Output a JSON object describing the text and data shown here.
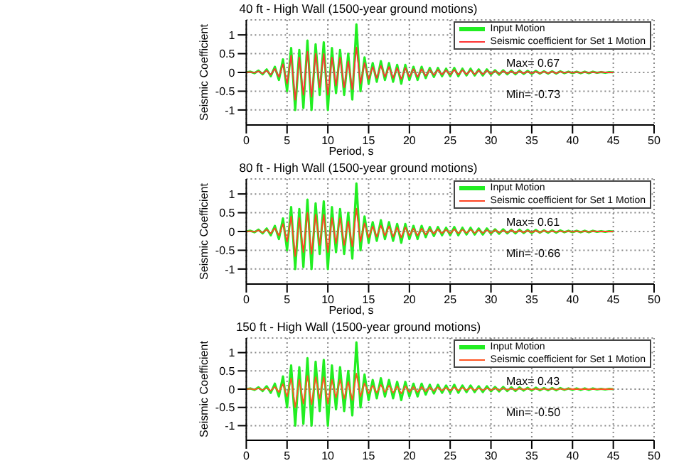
{
  "chart_data": [
    {
      "type": "line",
      "title": "40 ft - High Wall (1500-year ground motions)",
      "xlabel": "Period, s",
      "ylabel": "Seismic Coefficient",
      "x": [
        0,
        0.5,
        1,
        1.5,
        2,
        2.5,
        3,
        3.5,
        4,
        4.5,
        5,
        5.5,
        6,
        6.5,
        7,
        7.5,
        8,
        8.5,
        9,
        9.5,
        10,
        10.5,
        11,
        11.5,
        12,
        12.5,
        13,
        13.5,
        14,
        14.5,
        15,
        15.5,
        16,
        16.5,
        17,
        17.5,
        18,
        18.5,
        19,
        19.5,
        20,
        20.5,
        21,
        21.5,
        22,
        22.5,
        23,
        23.5,
        24,
        24.5,
        25,
        25.5,
        26,
        26.5,
        27,
        27.5,
        28,
        28.5,
        29,
        29.5,
        30,
        30.5,
        31,
        31.5,
        32,
        32.5,
        33,
        33.5,
        34,
        34.5,
        35,
        35.5,
        36,
        36.5,
        37,
        37.5,
        38,
        38.5,
        39,
        39.5,
        40,
        40.5,
        41,
        41.5,
        42,
        42.5,
        43,
        43.5,
        44,
        44.5,
        45
      ],
      "series": [
        {
          "name": "Input Motion",
          "color": "#22ee22",
          "values": [
            0,
            0.02,
            -0.02,
            0.05,
            -0.05,
            0.08,
            -0.1,
            0.15,
            -0.2,
            0.35,
            -0.5,
            0.65,
            -1.0,
            0.6,
            -0.95,
            0.85,
            -1.0,
            0.75,
            -0.6,
            0.8,
            -1.0,
            0.65,
            -0.55,
            0.6,
            -0.6,
            0.5,
            -0.72,
            1.28,
            -0.5,
            0.4,
            -0.3,
            0.25,
            -0.25,
            0.3,
            -0.2,
            0.25,
            -0.25,
            0.2,
            -0.3,
            0.2,
            -0.2,
            0.15,
            -0.2,
            0.15,
            -0.15,
            0.12,
            -0.12,
            0.12,
            -0.1,
            0.1,
            -0.1,
            0.12,
            -0.1,
            0.1,
            -0.08,
            0.1,
            -0.08,
            0.08,
            -0.08,
            0.08,
            -0.06,
            0.06,
            -0.06,
            0.06,
            -0.05,
            0.05,
            -0.05,
            0.05,
            -0.04,
            0.04,
            -0.04,
            0.04,
            -0.03,
            0.03,
            -0.03,
            0.03,
            -0.03,
            0.03,
            -0.02,
            0.02,
            -0.02,
            0.02,
            -0.02,
            0.02,
            -0.02,
            0.02,
            -0.01,
            0.01,
            -0.01,
            0.01,
            0
          ]
        },
        {
          "name": "Seismic coefficient for Set 1 Motion",
          "color": "#ff3333",
          "values": [
            0,
            0.01,
            -0.01,
            0.03,
            -0.03,
            0.05,
            -0.06,
            0.1,
            -0.12,
            0.22,
            -0.3,
            0.45,
            -0.73,
            0.4,
            -0.6,
            0.55,
            -0.65,
            0.5,
            -0.4,
            0.5,
            -0.6,
            0.4,
            -0.35,
            0.4,
            -0.4,
            0.3,
            -0.45,
            0.67,
            -0.3,
            0.25,
            -0.18,
            0.15,
            -0.15,
            0.18,
            -0.12,
            0.15,
            -0.15,
            0.12,
            -0.18,
            0.12,
            -0.12,
            0.09,
            -0.12,
            0.09,
            -0.09,
            0.07,
            -0.07,
            0.07,
            -0.06,
            0.06,
            -0.06,
            0.07,
            -0.06,
            0.06,
            -0.05,
            0.06,
            -0.05,
            0.05,
            -0.05,
            0.05,
            -0.04,
            0.04,
            -0.04,
            0.04,
            -0.03,
            0.03,
            -0.03,
            0.03,
            -0.02,
            0.02,
            -0.02,
            0.02,
            -0.02,
            0.02,
            -0.02,
            0.02,
            -0.02,
            0.02,
            -0.01,
            0.01,
            -0.01,
            0.01,
            -0.01,
            0.01,
            -0.01,
            0.01,
            -0.01,
            0.01,
            0,
            0,
            0
          ]
        }
      ],
      "xlim": [
        0,
        50
      ],
      "xticks": [
        0,
        5,
        10,
        15,
        20,
        25,
        30,
        35,
        40,
        45,
        50
      ],
      "ylim": [
        -1.4,
        1.4
      ],
      "yticks": [
        -1,
        -0.5,
        0,
        0.5,
        1
      ],
      "grid": true,
      "legend": "top right",
      "annotations": [
        "Max= 0.67",
        "Min= -0.73"
      ]
    },
    {
      "type": "line",
      "title": "80 ft - High Wall (1500-year ground motions)",
      "xlabel": "Period, s",
      "ylabel": "Seismic Coefficient",
      "x": [
        0,
        0.5,
        1,
        1.5,
        2,
        2.5,
        3,
        3.5,
        4,
        4.5,
        5,
        5.5,
        6,
        6.5,
        7,
        7.5,
        8,
        8.5,
        9,
        9.5,
        10,
        10.5,
        11,
        11.5,
        12,
        12.5,
        13,
        13.5,
        14,
        14.5,
        15,
        15.5,
        16,
        16.5,
        17,
        17.5,
        18,
        18.5,
        19,
        19.5,
        20,
        20.5,
        21,
        21.5,
        22,
        22.5,
        23,
        23.5,
        24,
        24.5,
        25,
        25.5,
        26,
        26.5,
        27,
        27.5,
        28,
        28.5,
        29,
        29.5,
        30,
        30.5,
        31,
        31.5,
        32,
        32.5,
        33,
        33.5,
        34,
        34.5,
        35,
        35.5,
        36,
        36.5,
        37,
        37.5,
        38,
        38.5,
        39,
        39.5,
        40,
        40.5,
        41,
        41.5,
        42,
        42.5,
        43,
        43.5,
        44,
        44.5,
        45
      ],
      "series": [
        {
          "name": "Input Motion",
          "color": "#22ee22",
          "values": [
            0,
            0.02,
            -0.02,
            0.05,
            -0.05,
            0.08,
            -0.1,
            0.15,
            -0.2,
            0.35,
            -0.5,
            0.65,
            -1.0,
            0.6,
            -0.95,
            0.85,
            -1.0,
            0.75,
            -0.6,
            0.8,
            -1.0,
            0.65,
            -0.55,
            0.6,
            -0.6,
            0.5,
            -0.72,
            1.28,
            -0.5,
            0.4,
            -0.3,
            0.25,
            -0.25,
            0.3,
            -0.2,
            0.25,
            -0.25,
            0.2,
            -0.3,
            0.2,
            -0.2,
            0.15,
            -0.2,
            0.15,
            -0.15,
            0.12,
            -0.12,
            0.12,
            -0.1,
            0.1,
            -0.1,
            0.12,
            -0.1,
            0.1,
            -0.08,
            0.1,
            -0.08,
            0.08,
            -0.08,
            0.08,
            -0.06,
            0.06,
            -0.06,
            0.06,
            -0.05,
            0.05,
            -0.05,
            0.05,
            -0.04,
            0.04,
            -0.04,
            0.04,
            -0.03,
            0.03,
            -0.03,
            0.03,
            -0.03,
            0.03,
            -0.02,
            0.02,
            -0.02,
            0.02,
            -0.02,
            0.02,
            -0.02,
            0.02,
            -0.01,
            0.01,
            -0.01,
            0.01,
            0
          ]
        },
        {
          "name": "Seismic coefficient for Set 1 Motion",
          "color": "#ff4422",
          "values": [
            0,
            0.01,
            -0.01,
            0.03,
            -0.03,
            0.05,
            -0.05,
            0.09,
            -0.11,
            0.2,
            -0.27,
            0.4,
            -0.66,
            0.36,
            -0.55,
            0.5,
            -0.6,
            0.45,
            -0.36,
            0.45,
            -0.55,
            0.36,
            -0.32,
            0.36,
            -0.36,
            0.27,
            -0.4,
            0.61,
            -0.27,
            0.22,
            -0.16,
            0.14,
            -0.14,
            0.16,
            -0.11,
            0.14,
            -0.14,
            0.11,
            -0.16,
            0.11,
            -0.11,
            0.08,
            -0.11,
            0.08,
            -0.08,
            0.06,
            -0.06,
            0.06,
            -0.05,
            0.05,
            -0.05,
            0.06,
            -0.05,
            0.05,
            -0.04,
            0.05,
            -0.04,
            0.04,
            -0.04,
            0.04,
            -0.04,
            0.04,
            -0.03,
            0.03,
            -0.03,
            0.03,
            -0.02,
            0.02,
            -0.02,
            0.02,
            -0.02,
            0.02,
            -0.02,
            0.02,
            -0.01,
            0.01,
            -0.01,
            0.01,
            -0.01,
            0.01,
            -0.01,
            0.01,
            -0.01,
            0.01,
            -0.01,
            0.01,
            0,
            0,
            0,
            0,
            0
          ]
        }
      ],
      "xlim": [
        0,
        50
      ],
      "xticks": [
        0,
        5,
        10,
        15,
        20,
        25,
        30,
        35,
        40,
        45,
        50
      ],
      "ylim": [
        -1.4,
        1.4
      ],
      "yticks": [
        -1,
        -0.5,
        0,
        0.5,
        1
      ],
      "grid": true,
      "legend": "top right",
      "annotations": [
        "Max= 0.61",
        "Min= -0.66"
      ]
    },
    {
      "type": "line",
      "title": "150 ft - High Wall (1500-year ground motions)",
      "ylabel": "Seismic Coefficient",
      "x": [
        0,
        0.5,
        1,
        1.5,
        2,
        2.5,
        3,
        3.5,
        4,
        4.5,
        5,
        5.5,
        6,
        6.5,
        7,
        7.5,
        8,
        8.5,
        9,
        9.5,
        10,
        10.5,
        11,
        11.5,
        12,
        12.5,
        13,
        13.5,
        14,
        14.5,
        15,
        15.5,
        16,
        16.5,
        17,
        17.5,
        18,
        18.5,
        19,
        19.5,
        20,
        20.5,
        21,
        21.5,
        22,
        22.5,
        23,
        23.5,
        24,
        24.5,
        25,
        25.5,
        26,
        26.5,
        27,
        27.5,
        28,
        28.5,
        29,
        29.5,
        30,
        30.5,
        31,
        31.5,
        32,
        32.5,
        33,
        33.5,
        34,
        34.5,
        35,
        35.5,
        36,
        36.5,
        37,
        37.5,
        38,
        38.5,
        39,
        39.5,
        40,
        40.5,
        41,
        41.5,
        42,
        42.5,
        43,
        43.5,
        44,
        44.5,
        45
      ],
      "series": [
        {
          "name": "Input Motion",
          "color": "#22ee22",
          "values": [
            0,
            0.02,
            -0.02,
            0.05,
            -0.05,
            0.08,
            -0.1,
            0.15,
            -0.2,
            0.35,
            -0.5,
            0.65,
            -1.0,
            0.6,
            -0.95,
            0.85,
            -1.0,
            0.75,
            -0.6,
            0.8,
            -1.0,
            0.65,
            -0.55,
            0.6,
            -0.6,
            0.5,
            -0.72,
            1.28,
            -0.5,
            0.4,
            -0.3,
            0.25,
            -0.25,
            0.3,
            -0.2,
            0.25,
            -0.25,
            0.2,
            -0.3,
            0.2,
            -0.2,
            0.15,
            -0.2,
            0.15,
            -0.15,
            0.12,
            -0.12,
            0.12,
            -0.1,
            0.1,
            -0.1,
            0.12,
            -0.1,
            0.1,
            -0.08,
            0.1,
            -0.08,
            0.08,
            -0.08,
            0.08,
            -0.06,
            0.06,
            -0.06,
            0.06,
            -0.05,
            0.05,
            -0.05,
            0.05,
            -0.04,
            0.04,
            -0.04,
            0.04,
            -0.03,
            0.03,
            -0.03,
            0.03,
            -0.03,
            0.03,
            -0.02,
            0.02,
            -0.02,
            0.02,
            -0.02,
            0.02,
            -0.02,
            0.02,
            -0.01,
            0.01,
            -0.01,
            0.01,
            0
          ]
        },
        {
          "name": "Seismic coefficient for Set 1 Motion",
          "color": "#ff5522",
          "values": [
            0,
            0.01,
            -0.01,
            0.02,
            -0.02,
            0.03,
            -0.04,
            0.06,
            -0.08,
            0.14,
            -0.2,
            0.3,
            -0.5,
            0.26,
            -0.4,
            0.36,
            -0.42,
            0.33,
            -0.26,
            0.33,
            -0.4,
            0.26,
            -0.23,
            0.26,
            -0.26,
            0.2,
            -0.3,
            0.43,
            -0.2,
            0.16,
            -0.12,
            0.1,
            -0.1,
            0.12,
            -0.08,
            0.1,
            -0.1,
            0.08,
            -0.12,
            0.08,
            -0.08,
            0.06,
            -0.08,
            0.06,
            -0.06,
            0.05,
            -0.05,
            0.05,
            -0.04,
            0.04,
            -0.04,
            0.05,
            -0.04,
            0.04,
            -0.03,
            0.04,
            -0.03,
            0.03,
            -0.03,
            0.03,
            -0.03,
            0.03,
            -0.03,
            0.03,
            -0.02,
            0.02,
            -0.02,
            0.02,
            -0.01,
            0.01,
            -0.01,
            0.01,
            -0.01,
            0.01,
            -0.01,
            0.01,
            -0.01,
            0.01,
            -0.01,
            0.01,
            0,
            0,
            0,
            0,
            0,
            0,
            0,
            0,
            0,
            0,
            0
          ]
        }
      ],
      "xlim": [
        0,
        50
      ],
      "xticks": [
        0,
        5,
        10,
        15,
        20,
        25,
        30,
        35,
        40,
        45,
        50
      ],
      "ylim": [
        -1.4,
        1.4
      ],
      "yticks": [
        -1,
        -0.5,
        0,
        0.5,
        1
      ],
      "grid": true,
      "legend": "top right",
      "annotations": [
        "Max= 0.43",
        "Min= -0.50"
      ]
    }
  ]
}
